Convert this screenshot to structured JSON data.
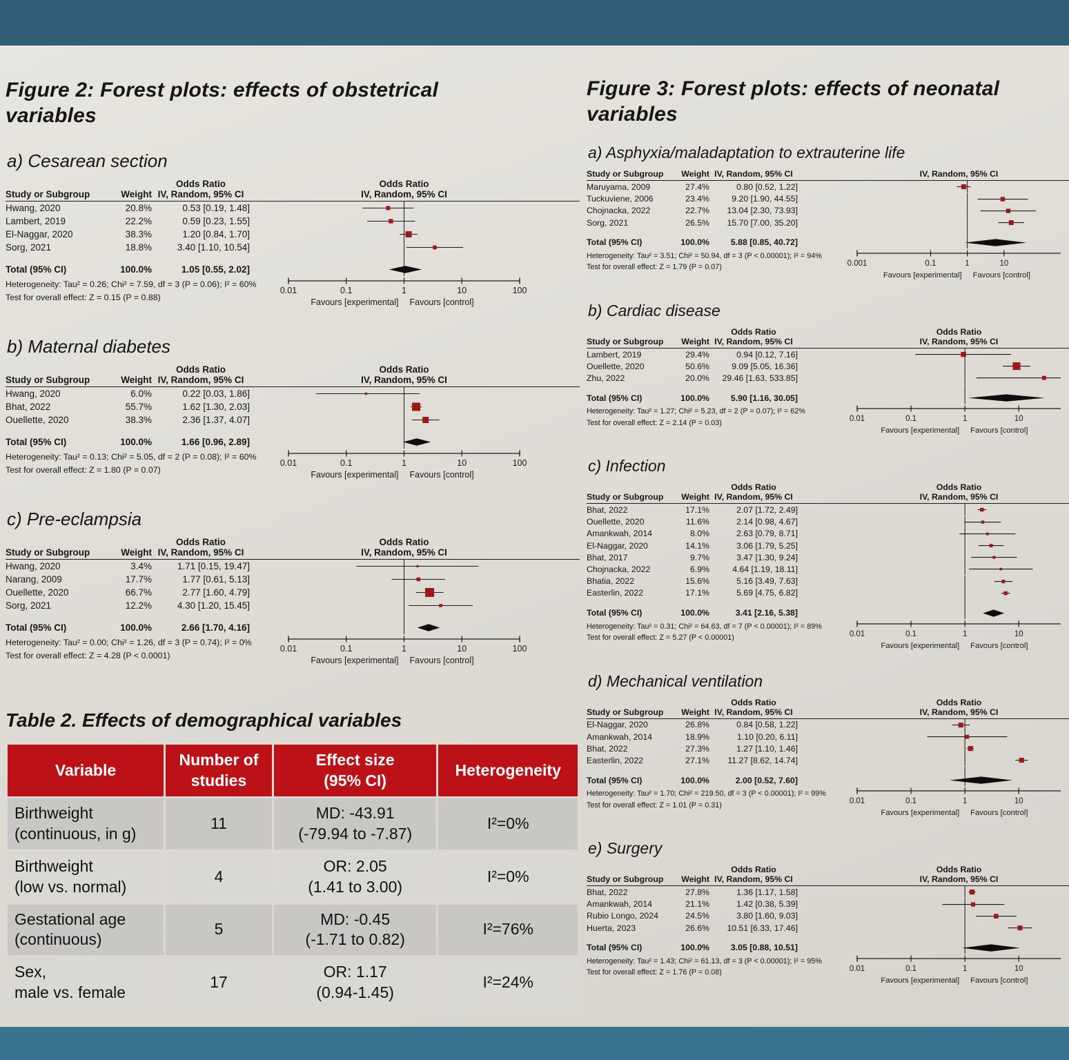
{
  "page": {
    "wall_color_top": "#325e78",
    "wall_color_bottom": "#3a7390",
    "poster_color": "#dedcd5",
    "accent_red": "#bb1117",
    "marker_red": "#9a1a1a"
  },
  "forest_labels": {
    "odds_ratio": "Odds Ratio",
    "method": "IV, Random, 95% CI",
    "study": "Study or Subgroup",
    "weight": "Weight",
    "total": "Total (95% CI)",
    "favours_left": "Favours [experimental]",
    "favours_right": "Favours [control]"
  },
  "figure2": {
    "title": "Figure 2: Forest plots: effects of obstetrical\nvariables",
    "plots": [
      "2a",
      "2b",
      "2c"
    ]
  },
  "figure3": {
    "title": "Figure 3: Forest plots: effects of neonatal\nvariables",
    "plots": [
      "3a",
      "3b",
      "3c",
      "3d",
      "3e"
    ]
  },
  "chart_data": [
    {
      "id": "2a",
      "type": "forest",
      "column": "left",
      "title": "a) Cesarean section",
      "or_header": true,
      "xlim": [
        0.01,
        100
      ],
      "ticks": [
        0.01,
        0.1,
        1,
        10,
        100
      ],
      "studies": [
        {
          "name": "Hwang, 2020",
          "weight": 20.8,
          "or": 0.53,
          "lo": 0.19,
          "hi": 1.48
        },
        {
          "name": "Lambert, 2019",
          "weight": 22.2,
          "or": 0.59,
          "lo": 0.23,
          "hi": 1.55
        },
        {
          "name": "El-Naggar, 2020",
          "weight": 38.3,
          "or": 1.2,
          "lo": 0.84,
          "hi": 1.7
        },
        {
          "name": "Sorg, 2021",
          "weight": 18.8,
          "or": 3.4,
          "lo": 1.1,
          "hi": 10.54
        }
      ],
      "total": {
        "weight": 100.0,
        "or": 1.05,
        "lo": 0.55,
        "hi": 2.02
      },
      "heterogeneity": "Heterogeneity: Tau² = 0.26; Chi² = 7.59, df = 3 (P = 0.06); I² = 60%",
      "overall_test": "Test for overall effect: Z = 0.15 (P = 0.88)"
    },
    {
      "id": "2b",
      "type": "forest",
      "column": "left",
      "title": "b) Maternal diabetes",
      "or_header": true,
      "xlim": [
        0.01,
        100
      ],
      "ticks": [
        0.01,
        0.1,
        1,
        10,
        100
      ],
      "studies": [
        {
          "name": "Hwang, 2020",
          "weight": 6.0,
          "or": 0.22,
          "lo": 0.03,
          "hi": 1.86
        },
        {
          "name": "Bhat, 2022",
          "weight": 55.7,
          "or": 1.62,
          "lo": 1.3,
          "hi": 2.03
        },
        {
          "name": "Ouellette, 2020",
          "weight": 38.3,
          "or": 2.36,
          "lo": 1.37,
          "hi": 4.07
        }
      ],
      "total": {
        "weight": 100.0,
        "or": 1.66,
        "lo": 0.96,
        "hi": 2.89
      },
      "heterogeneity": "Heterogeneity: Tau² = 0.13; Chi² = 5.05, df = 2 (P = 0.08); I² = 60%",
      "overall_test": "Test for overall effect: Z = 1.80 (P = 0.07)"
    },
    {
      "id": "2c",
      "type": "forest",
      "column": "left",
      "title": "c) Pre-eclampsia",
      "or_header": true,
      "xlim": [
        0.01,
        100
      ],
      "ticks": [
        0.01,
        0.1,
        1,
        10,
        100
      ],
      "studies": [
        {
          "name": "Hwang, 2020",
          "weight": 3.4,
          "or": 1.71,
          "lo": 0.15,
          "hi": 19.47
        },
        {
          "name": "Narang, 2009",
          "weight": 17.7,
          "or": 1.77,
          "lo": 0.61,
          "hi": 5.13
        },
        {
          "name": "Ouellette, 2020",
          "weight": 66.7,
          "or": 2.77,
          "lo": 1.6,
          "hi": 4.79
        },
        {
          "name": "Sorg, 2021",
          "weight": 12.2,
          "or": 4.3,
          "lo": 1.2,
          "hi": 15.45
        }
      ],
      "total": {
        "weight": 100.0,
        "or": 2.66,
        "lo": 1.7,
        "hi": 4.16
      },
      "heterogeneity": "Heterogeneity: Tau² = 0.00; Chi² = 1.26, df = 3 (P = 0.74); I² = 0%",
      "overall_test": "Test for overall effect: Z = 4.28 (P < 0.0001)"
    },
    {
      "id": "3a",
      "type": "forest",
      "column": "right",
      "title": "a) Asphyxia/maladaptation to extrauterine life",
      "or_header": false,
      "xlim": [
        0.001,
        350
      ],
      "ticks": [
        0.001,
        0.1,
        1,
        10
      ],
      "studies": [
        {
          "name": "Maruyama, 2009",
          "weight": 27.4,
          "or": 0.8,
          "lo": 0.52,
          "hi": 1.22
        },
        {
          "name": "Tuckuviene, 2006",
          "weight": 23.4,
          "or": 9.2,
          "lo": 1.9,
          "hi": 44.55
        },
        {
          "name": "Chojnacka, 2022",
          "weight": 22.7,
          "or": 13.04,
          "lo": 2.3,
          "hi": 73.93
        },
        {
          "name": "Sorg, 2021",
          "weight": 26.5,
          "or": 15.7,
          "lo": 7.0,
          "hi": 35.2
        }
      ],
      "total": {
        "weight": 100.0,
        "or": 5.88,
        "lo": 0.85,
        "hi": 40.72
      },
      "heterogeneity": "Heterogeneity: Tau² = 3.51; Chi² = 50.94, df = 3 (P < 0.00001); I² = 94%",
      "overall_test": "Test for overall effect: Z = 1.79 (P = 0.07)"
    },
    {
      "id": "3b",
      "type": "forest",
      "column": "right",
      "title": "b) Cardiac disease",
      "or_header": true,
      "xlim": [
        0.01,
        60
      ],
      "ticks": [
        0.01,
        0.1,
        1,
        10
      ],
      "studies": [
        {
          "name": "Lambert, 2019",
          "weight": 29.4,
          "or": 0.94,
          "lo": 0.12,
          "hi": 7.16
        },
        {
          "name": "Ouellette, 2020",
          "weight": 50.6,
          "or": 9.09,
          "lo": 5.05,
          "hi": 16.36
        },
        {
          "name": "Zhu, 2022",
          "weight": 20.0,
          "or": 29.46,
          "lo": 1.63,
          "hi": 533.85
        }
      ],
      "total": {
        "weight": 100.0,
        "or": 5.9,
        "lo": 1.16,
        "hi": 30.05
      },
      "heterogeneity": "Heterogeneity: Tau² = 1.27; Chi² = 5.23, df = 2 (P = 0.07); I² = 62%",
      "overall_test": "Test for overall effect: Z = 2.14 (P = 0.03)"
    },
    {
      "id": "3c",
      "type": "forest",
      "column": "right",
      "title": "c) Infection",
      "or_header": true,
      "xlim": [
        0.01,
        60
      ],
      "ticks": [
        0.01,
        0.1,
        1,
        10
      ],
      "studies": [
        {
          "name": "Bhat, 2022",
          "weight": 17.1,
          "or": 2.07,
          "lo": 1.72,
          "hi": 2.49
        },
        {
          "name": "Ouellette, 2020",
          "weight": 11.6,
          "or": 2.14,
          "lo": 0.98,
          "hi": 4.67
        },
        {
          "name": "Amankwah, 2014",
          "weight": 8.0,
          "or": 2.63,
          "lo": 0.79,
          "hi": 8.71
        },
        {
          "name": "El-Naggar, 2020",
          "weight": 14.1,
          "or": 3.06,
          "lo": 1.79,
          "hi": 5.25
        },
        {
          "name": "Bhat, 2017",
          "weight": 9.7,
          "or": 3.47,
          "lo": 1.3,
          "hi": 9.24
        },
        {
          "name": "Chojnacka, 2022",
          "weight": 6.9,
          "or": 4.64,
          "lo": 1.19,
          "hi": 18.11
        },
        {
          "name": "Bhatia, 2022",
          "weight": 15.6,
          "or": 5.16,
          "lo": 3.49,
          "hi": 7.63
        },
        {
          "name": "Easterlin, 2022",
          "weight": 17.1,
          "or": 5.69,
          "lo": 4.75,
          "hi": 6.82
        }
      ],
      "total": {
        "weight": 100.0,
        "or": 3.41,
        "lo": 2.16,
        "hi": 5.38
      },
      "heterogeneity": "Heterogeneity: Tau² = 0.31; Chi² = 64.63, df = 7 (P < 0.00001); I² = 89%",
      "overall_test": "Test for overall effect: Z = 5.27 (P < 0.00001)"
    },
    {
      "id": "3d",
      "type": "forest",
      "column": "right",
      "title": "d) Mechanical ventilation",
      "or_header": true,
      "xlim": [
        0.01,
        60
      ],
      "ticks": [
        0.01,
        0.1,
        1,
        10
      ],
      "studies": [
        {
          "name": "El-Naggar, 2020",
          "weight": 26.8,
          "or": 0.84,
          "lo": 0.58,
          "hi": 1.22
        },
        {
          "name": "Amankwah, 2014",
          "weight": 18.9,
          "or": 1.1,
          "lo": 0.2,
          "hi": 6.11
        },
        {
          "name": "Bhat, 2022",
          "weight": 27.3,
          "or": 1.27,
          "lo": 1.1,
          "hi": 1.46
        },
        {
          "name": "Easterlin, 2022",
          "weight": 27.1,
          "or": 11.27,
          "lo": 8.62,
          "hi": 14.74
        }
      ],
      "total": {
        "weight": 100.0,
        "or": 2.0,
        "lo": 0.52,
        "hi": 7.6
      },
      "heterogeneity": "Heterogeneity: Tau² = 1.70; Chi² = 219.50, df = 3 (P < 0.00001); I² = 99%",
      "overall_test": "Test for overall effect: Z = 1.01 (P = 0.31)"
    },
    {
      "id": "3e",
      "type": "forest",
      "column": "right",
      "title": "e) Surgery",
      "or_header": true,
      "xlim": [
        0.01,
        60
      ],
      "ticks": [
        0.01,
        0.1,
        1,
        10
      ],
      "studies": [
        {
          "name": "Bhat, 2022",
          "weight": 27.8,
          "or": 1.36,
          "lo": 1.17,
          "hi": 1.58
        },
        {
          "name": "Amankwah, 2014",
          "weight": 21.1,
          "or": 1.42,
          "lo": 0.38,
          "hi": 5.39
        },
        {
          "name": "Rubio Longo, 2024",
          "weight": 24.5,
          "or": 3.8,
          "lo": 1.6,
          "hi": 9.03
        },
        {
          "name": "Huerta, 2023",
          "weight": 26.6,
          "or": 10.51,
          "lo": 6.33,
          "hi": 17.46
        }
      ],
      "total": {
        "weight": 100.0,
        "or": 3.05,
        "lo": 0.88,
        "hi": 10.51
      },
      "heterogeneity": "Heterogeneity: Tau² = 1.43; Chi² = 61.13, df = 3 (P < 0.00001); I² = 95%",
      "overall_test": "Test for overall effect: Z = 1.76 (P = 0.08)"
    }
  ],
  "table2": {
    "title": "Table 2. Effects of demographical variables",
    "headers": [
      "Variable",
      "Number of\nstudies",
      "Effect size\n(95% CI)",
      "Heterogeneity"
    ],
    "rows": [
      [
        "Birthweight\n(continuous, in g)",
        "11",
        "MD: -43.91\n(-79.94 to -7.87)",
        "I²=0%"
      ],
      [
        "Birthweight\n(low vs. normal)",
        "4",
        "OR: 2.05\n(1.41 to 3.00)",
        "I²=0%"
      ],
      [
        "Gestational age\n(continuous)",
        "5",
        "MD: -0.45\n(-1.71 to 0.82)",
        "I²=76%"
      ],
      [
        "Sex,\nmale vs. female",
        "17",
        "OR: 1.17\n(0.94-1.45)",
        "I²=24%"
      ]
    ]
  }
}
